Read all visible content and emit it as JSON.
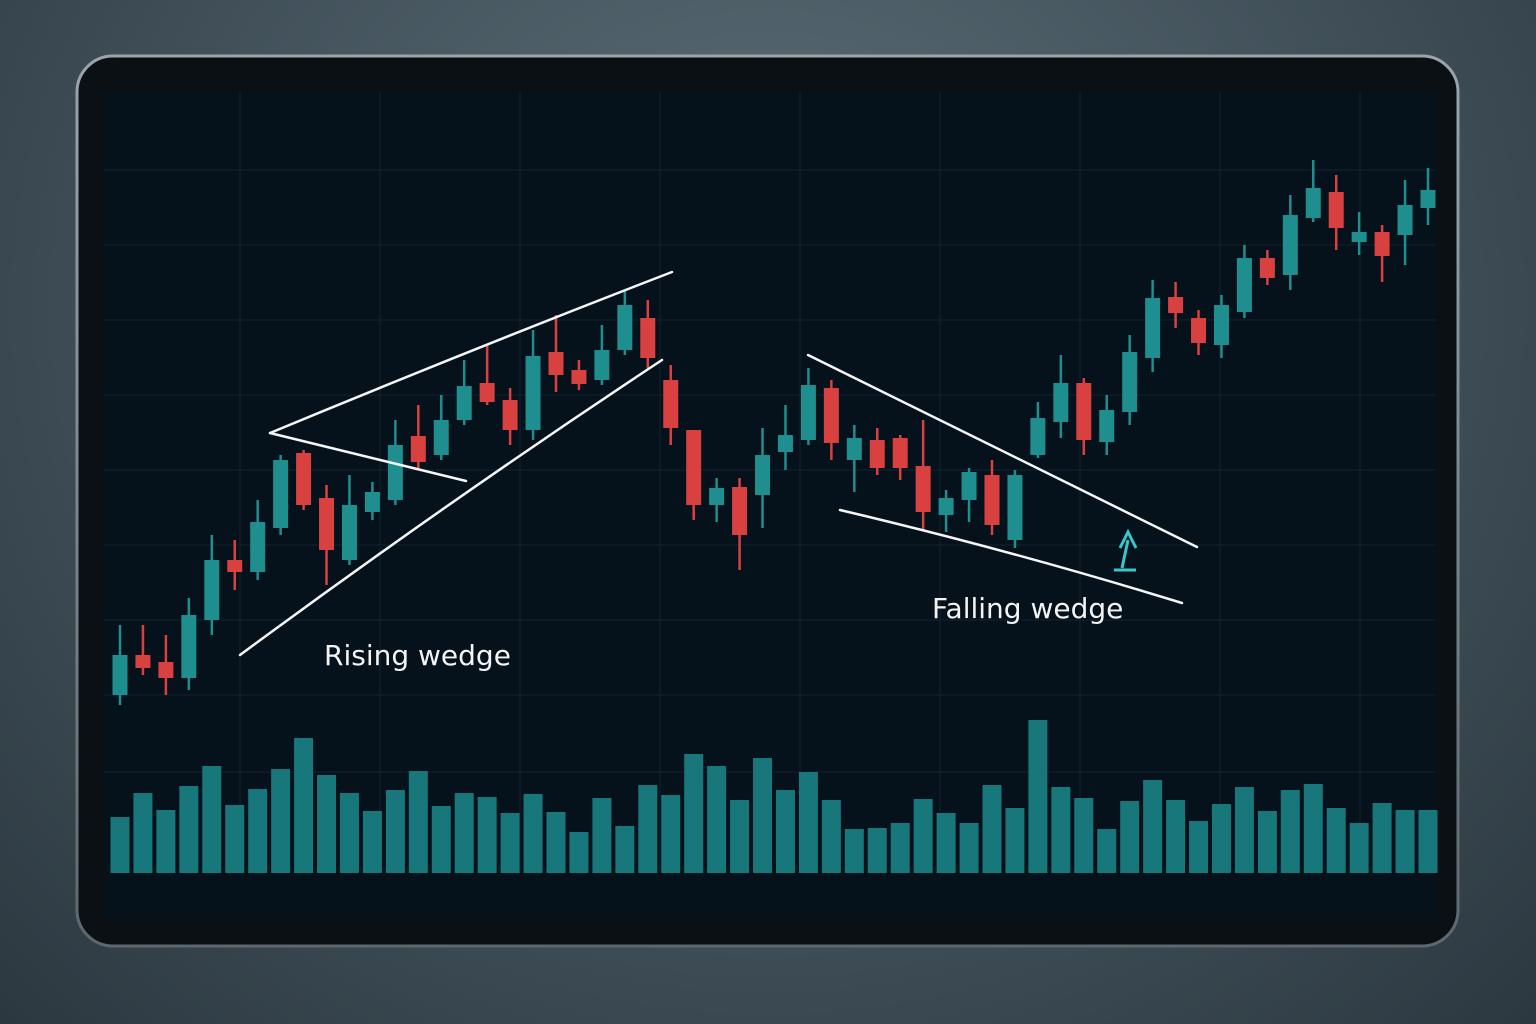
{
  "chart_data": {
    "type": "candlestick",
    "open": [
      15,
      55,
      48,
      32,
      90,
      150,
      138,
      182,
      257,
      212,
      150,
      198,
      210,
      274,
      255,
      290,
      327,
      310,
      280,
      358,
      340,
      330,
      360,
      392,
      330,
      280,
      205,
      223,
      215,
      258,
      270,
      322,
      250,
      270,
      272,
      244,
      195,
      210,
      235,
      170,
      255,
      288,
      327,
      268,
      298,
      352,
      413,
      392,
      365,
      398,
      452,
      435,
      492,
      518,
      468,
      478,
      475,
      502
    ],
    "high": [
      85,
      85,
      75,
      112,
      175,
      170,
      210,
      255,
      260,
      225,
      235,
      228,
      290,
      305,
      315,
      350,
      365,
      322,
      380,
      395,
      350,
      385,
      420,
      410,
      345,
      280,
      232,
      232,
      282,
      305,
      342,
      330,
      285,
      282,
      275,
      290,
      220,
      242,
      250,
      240,
      308,
      355,
      332,
      315,
      375,
      430,
      428,
      400,
      415,
      465,
      460,
      515,
      550,
      535,
      498,
      485,
      530,
      542
    ],
    "low": [
      5,
      35,
      15,
      20,
      75,
      120,
      130,
      175,
      200,
      125,
      145,
      190,
      205,
      242,
      250,
      285,
      305,
      265,
      270,
      318,
      320,
      325,
      355,
      342,
      265,
      190,
      188,
      140,
      182,
      240,
      265,
      250,
      218,
      235,
      230,
      180,
      178,
      188,
      175,
      162,
      252,
      272,
      255,
      255,
      285,
      338,
      382,
      355,
      352,
      392,
      425,
      420,
      488,
      460,
      455,
      428,
      445,
      485
    ],
    "close": [
      55,
      42,
      32,
      95,
      150,
      138,
      188,
      250,
      205,
      160,
      205,
      218,
      265,
      248,
      290,
      324,
      308,
      280,
      354,
      335,
      326,
      360,
      405,
      352,
      282,
      205,
      222,
      175,
      255,
      275,
      325,
      267,
      272,
      242,
      242,
      198,
      212,
      238,
      185,
      235,
      292,
      327,
      270,
      300,
      358,
      412,
      397,
      367,
      405,
      452,
      432,
      495,
      522,
      482,
      478,
      454,
      505,
      520
    ],
    "volume": [
      56,
      80,
      63,
      87,
      107,
      68,
      84,
      104,
      135,
      98,
      80,
      62,
      83,
      102,
      67,
      80,
      76,
      60,
      79,
      61,
      41,
      75,
      47,
      88,
      78,
      119,
      107,
      73,
      115,
      83,
      101,
      73,
      44,
      45,
      50,
      74,
      60,
      50,
      88,
      65,
      153,
      86,
      75,
      44,
      72,
      93,
      73,
      52,
      69,
      86,
      62,
      83,
      89,
      65,
      50,
      70,
      63,
      63
    ],
    "ylim": [
      0,
      620
    ],
    "volume_ylim": [
      0,
      160
    ],
    "up_color": "#1e8e8e",
    "down_color": "#d8413f",
    "volume_color": "#17777b",
    "annotations": [
      "Rising wedge",
      "Falling wedge"
    ]
  }
}
